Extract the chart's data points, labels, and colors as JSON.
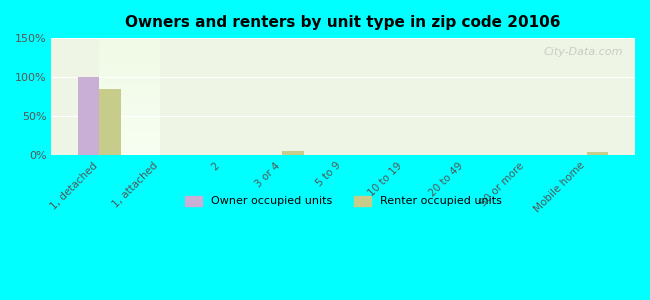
{
  "title": "Owners and renters by unit type in zip code 20106",
  "categories": [
    "1, detached",
    "1, attached",
    "2",
    "3 or 4",
    "5 to 9",
    "10 to 19",
    "20 to 49",
    "50 or more",
    "Mobile home"
  ],
  "owner_values": [
    100,
    0,
    0,
    0,
    0,
    0,
    0,
    0,
    0
  ],
  "renter_values": [
    85,
    0,
    0,
    6,
    0,
    0,
    0,
    0,
    5
  ],
  "owner_color": "#c9aed6",
  "renter_color": "#c8cc8a",
  "background_color": "#00ffff",
  "plot_bg_top": "#e8f5e0",
  "plot_bg_bottom": "#f5faf0",
  "ylim": [
    0,
    150
  ],
  "yticks": [
    0,
    50,
    100,
    150
  ],
  "ytick_labels": [
    "0%",
    "50%",
    "100%",
    "150%"
  ],
  "bar_width": 0.35,
  "watermark": "City-Data.com",
  "legend_labels": [
    "Owner occupied units",
    "Renter occupied units"
  ]
}
